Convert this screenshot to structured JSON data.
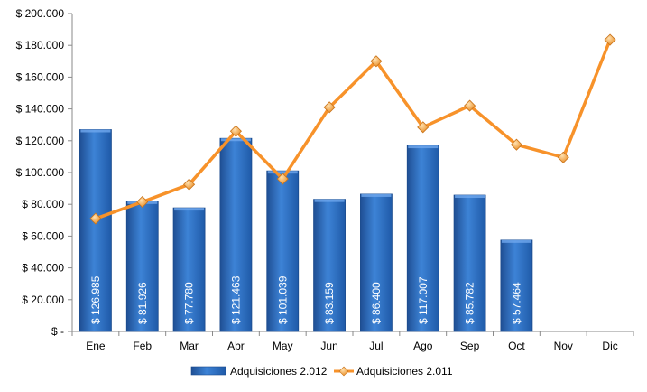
{
  "chart_data": {
    "type": "bar",
    "categories": [
      "Ene",
      "Feb",
      "Mar",
      "Abr",
      "May",
      "Jun",
      "Jul",
      "Ago",
      "Sep",
      "Oct",
      "Nov",
      "Dic"
    ],
    "ylim": [
      0,
      200000
    ],
    "y_ticks": [
      0,
      20000,
      40000,
      60000,
      80000,
      100000,
      120000,
      140000,
      160000,
      180000,
      200000
    ],
    "y_tick_labels": [
      "$ -",
      "$ 20.000",
      "$ 40.000",
      "$ 60.000",
      "$ 80.000",
      "$ 100.000",
      "$ 120.000",
      "$ 140.000",
      "$ 160.000",
      "$ 180.000",
      "$ 200.000"
    ],
    "grid": false,
    "legend_position": "bottom",
    "series": [
      {
        "name": "Adquisiciones 2.012",
        "type": "bar",
        "color": "#2E6FC4",
        "values": [
          126985,
          81926,
          77780,
          121463,
          101039,
          83159,
          86400,
          117007,
          85782,
          57464,
          null,
          null
        ],
        "data_labels": [
          "$ 126.985",
          "$ 81.926",
          "$ 77.780",
          "$ 121.463",
          "$ 101.039",
          "$ 83.159",
          "$ 86.400",
          "$ 117.007",
          "$ 85.782",
          "$ 57.464",
          "",
          ""
        ]
      },
      {
        "name": "Adquisiciones 2.011",
        "type": "line",
        "color": "#F7922A",
        "values": [
          71000,
          81500,
          92500,
          126000,
          96000,
          141000,
          170000,
          128500,
          142000,
          117500,
          109500,
          183500
        ]
      }
    ]
  }
}
